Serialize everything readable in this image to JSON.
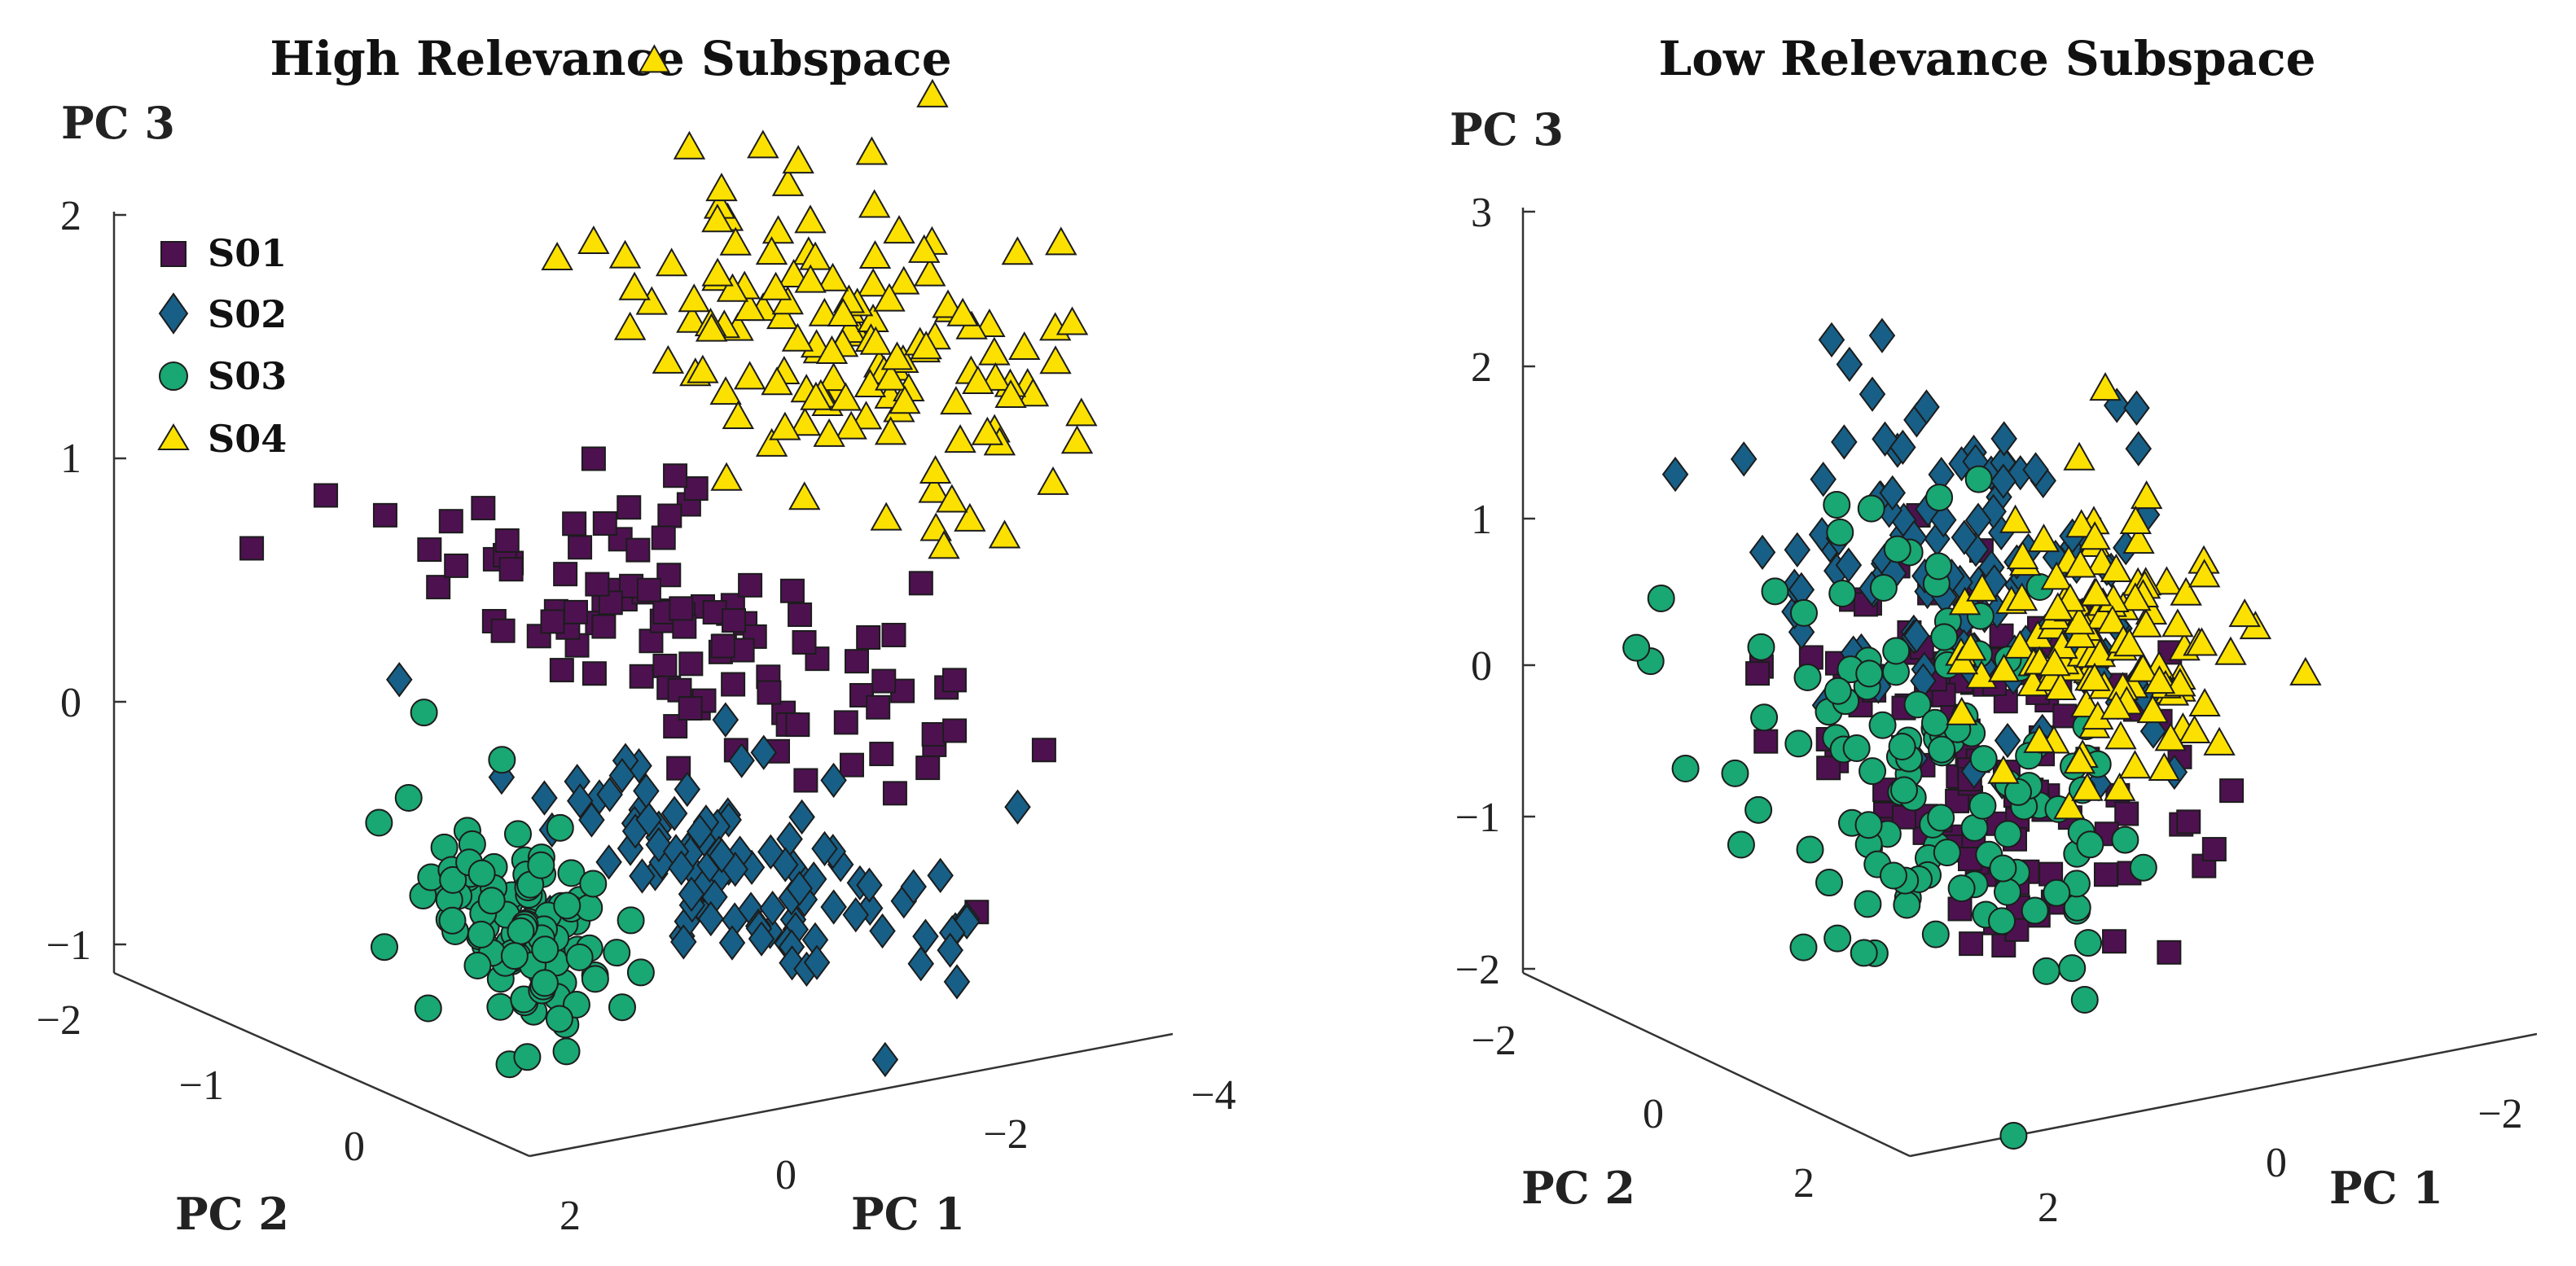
{
  "figure_colors": {
    "S01": "#4d1150",
    "S02": "#175f86",
    "S03": "#19a773",
    "S04": "#fce100"
  },
  "chart_data": [
    {
      "type": "scatter",
      "subtype": "scatter3d",
      "title": "High Relevance Subspace",
      "xlabel": "PC 1",
      "ylabel": "PC 2",
      "zlabel": "PC 3",
      "x_ticks": [
        "−4",
        "−2",
        "0",
        "2"
      ],
      "y_ticks": [
        "−2",
        "−1",
        "0"
      ],
      "z_ticks": [
        "−1",
        "0",
        "1",
        "2"
      ],
      "xlim": [
        -4,
        2
      ],
      "ylim": [
        -2,
        1
      ],
      "zlim": [
        -1,
        2
      ],
      "legend_position": "top-left",
      "series": [
        {
          "name": "S01",
          "marker": "square",
          "color": "#4d1150",
          "center": {
            "pc1": -0.6,
            "pc2": 0.3,
            "pc3": 0.1
          },
          "spread": {
            "pc1": 0.9,
            "pc2": 0.45,
            "pc3": 0.22
          },
          "count": 110
        },
        {
          "name": "S02",
          "marker": "diamond",
          "color": "#175f86",
          "center": {
            "pc1": 1.2,
            "pc2": -0.8,
            "pc3": -0.5
          },
          "spread": {
            "pc1": 0.6,
            "pc2": 0.45,
            "pc3": 0.2
          },
          "count": 110
        },
        {
          "name": "S03",
          "marker": "circle",
          "color": "#19a773",
          "center": {
            "pc1": 0.35,
            "pc2": 0.75,
            "pc3": -1.25
          },
          "spread": {
            "pc1": 0.28,
            "pc2": 0.2,
            "pc3": 0.22
          },
          "count": 110
        },
        {
          "name": "S04",
          "marker": "triangle",
          "color": "#fce100",
          "center": {
            "pc1": -1.8,
            "pc2": 0.25,
            "pc3": 1.4
          },
          "spread": {
            "pc1": 0.85,
            "pc2": 0.3,
            "pc3": 0.3
          },
          "count": 140
        }
      ]
    },
    {
      "type": "scatter",
      "subtype": "scatter3d",
      "title": "Low Relevance Subspace",
      "xlabel": "PC 1",
      "ylabel": "PC 2",
      "zlabel": "PC 3",
      "x_ticks": [
        "−2",
        "0",
        "2"
      ],
      "y_ticks": [
        "−2",
        "0",
        "2"
      ],
      "z_ticks": [
        "−2",
        "−1",
        "0",
        "1",
        "2",
        "3"
      ],
      "xlim": [
        -3,
        3
      ],
      "ylim": [
        -3,
        3
      ],
      "zlim": [
        -2,
        3
      ],
      "series": [
        {
          "name": "S01",
          "marker": "square",
          "color": "#4d1150",
          "center": {
            "pc1": 0.0,
            "pc2": 0.0,
            "pc3": -0.5
          },
          "spread": {
            "pc1": 1.2,
            "pc2": 0.9,
            "pc3": 0.6
          },
          "count": 130
        },
        {
          "name": "S02",
          "marker": "diamond",
          "color": "#175f86",
          "center": {
            "pc1": 1.6,
            "pc2": -1.0,
            "pc3": 0.9
          },
          "spread": {
            "pc1": 1.2,
            "pc2": 0.8,
            "pc3": 0.6
          },
          "count": 130
        },
        {
          "name": "S03",
          "marker": "circle",
          "color": "#19a773",
          "center": {
            "pc1": 0.5,
            "pc2": 0.3,
            "pc3": -0.6
          },
          "spread": {
            "pc1": 1.3,
            "pc2": 0.9,
            "pc3": 0.8
          },
          "count": 130
        },
        {
          "name": "S04",
          "marker": "triangle",
          "color": "#fce100",
          "center": {
            "pc1": -1.2,
            "pc2": -0.6,
            "pc3": 0.5
          },
          "spread": {
            "pc1": 0.9,
            "pc2": 0.5,
            "pc3": 0.5
          },
          "count": 130
        }
      ]
    }
  ]
}
